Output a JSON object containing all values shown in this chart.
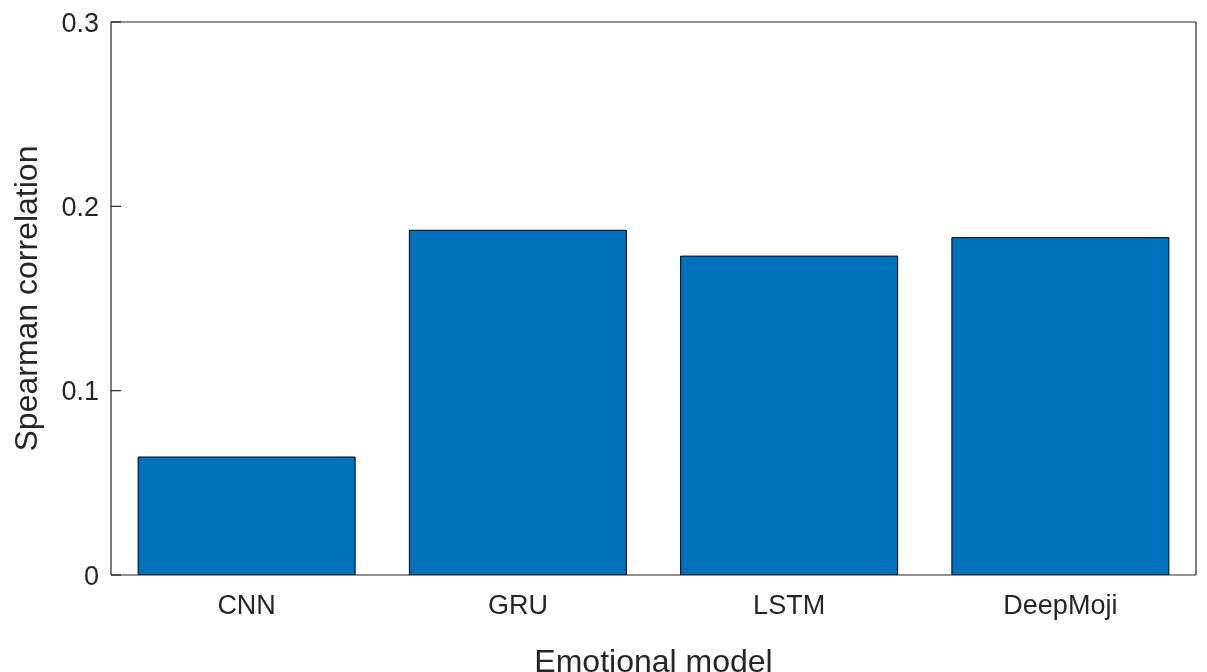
{
  "chart_data": {
    "type": "bar",
    "xlabel": "Emotional model",
    "ylabel": "Spearman correlation",
    "categories": [
      "CNN",
      "GRU",
      "LSTM",
      "DeepMoji"
    ],
    "values": [
      0.064,
      0.187,
      0.173,
      0.183
    ],
    "color": "#0072bd",
    "ylim": [
      0,
      0.3
    ],
    "yticks": [
      0,
      0.1,
      0.2,
      0.3
    ],
    "grid": false,
    "legend": false
  }
}
